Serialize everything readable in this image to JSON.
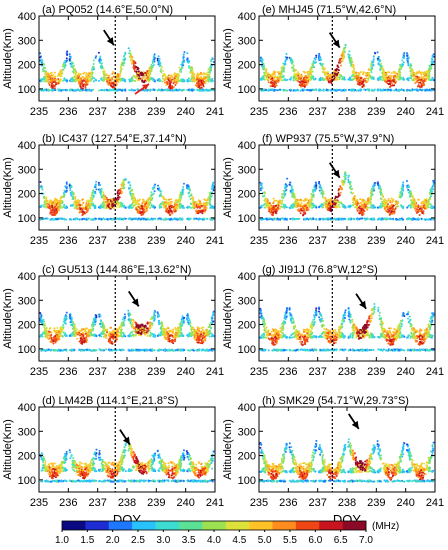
{
  "chart_data": [
    {
      "type": "scatter",
      "title": "(a) PQ052 (14.6°E,50.0°N)",
      "xlabel": "",
      "ylabel": "Altitude(Km)",
      "xlim": [
        235,
        241
      ],
      "ylim": [
        50,
        400
      ],
      "xticks": [
        "235",
        "236",
        "237",
        "238",
        "239",
        "240",
        "241"
      ],
      "yticks": [
        "100",
        "200",
        "300",
        "400"
      ],
      "marker_doy": 237.6,
      "arrows": [
        {
          "x": 237.55,
          "y": 280,
          "color": "#000000"
        },
        {
          "x": 238.75,
          "y": 120,
          "color": "#e2231a"
        }
      ],
      "day_profile": {
        "base_km": 95,
        "bottom_km": 120,
        "top_km": 250,
        "peak_doy": 238.3
      }
    },
    {
      "type": "scatter",
      "title": "(b) IC437 (127.54°E,37.14°N)",
      "xlabel": "",
      "ylabel": "Altitude(Km)",
      "xlim": [
        235,
        241
      ],
      "ylim": [
        50,
        400
      ],
      "xticks": [
        "235",
        "236",
        "237",
        "238",
        "239",
        "240",
        "241"
      ],
      "yticks": [
        "100",
        "200",
        "300",
        "400"
      ],
      "marker_doy": 237.6,
      "arrows": [],
      "day_profile": {
        "base_km": 95,
        "bottom_km": 130,
        "top_km": 250,
        "peak_doy": 237.7
      }
    },
    {
      "type": "scatter",
      "title": "(c) GU513 (144.86°E,13.62°N)",
      "xlabel": "",
      "ylabel": "Altitude(Km)",
      "xlim": [
        235,
        241
      ],
      "ylim": [
        50,
        400
      ],
      "xticks": [
        "235",
        "236",
        "237",
        "238",
        "239",
        "240",
        "241"
      ],
      "yticks": [
        "100",
        "200",
        "300",
        "400"
      ],
      "marker_doy": 237.6,
      "arrows": [
        {
          "x": 238.4,
          "y": 275,
          "color": "#000000"
        }
      ],
      "day_profile": {
        "base_km": 95,
        "bottom_km": 140,
        "top_km": 250,
        "peak_doy": 238.5
      }
    },
    {
      "type": "scatter",
      "title": "(d) LM42B (114.1°E,21.8°S)",
      "xlabel": "DOY",
      "ylabel": "Altitude(Km)",
      "xlim": [
        235,
        241
      ],
      "ylim": [
        50,
        400
      ],
      "xticks": [
        "235",
        "236",
        "237",
        "238",
        "239",
        "240",
        "241"
      ],
      "yticks": [
        "100",
        "200",
        "300",
        "400"
      ],
      "marker_doy": 237.6,
      "arrows": [
        {
          "x": 238.1,
          "y": 245,
          "color": "#000000"
        }
      ],
      "day_profile": {
        "base_km": 95,
        "bottom_km": 125,
        "top_km": 220,
        "peak_doy": 238.2
      }
    },
    {
      "type": "scatter",
      "title": "(e) MHJ45 (71.5°W,42.6°N)",
      "xlabel": "",
      "ylabel": "Altitude(Km)",
      "xlim": [
        235,
        241
      ],
      "ylim": [
        50,
        400
      ],
      "xticks": [
        "235",
        "236",
        "237",
        "238",
        "239",
        "240",
        "241"
      ],
      "yticks": [
        "100",
        "200",
        "300",
        "400"
      ],
      "marker_doy": 237.5,
      "arrows": [
        {
          "x": 237.75,
          "y": 270,
          "color": "#000000"
        }
      ],
      "day_profile": {
        "base_km": 95,
        "bottom_km": 125,
        "top_km": 250,
        "peak_doy": 237.8
      }
    },
    {
      "type": "scatter",
      "title": "(f) WP937 (75.5°W,37.9°N)",
      "xlabel": "",
      "ylabel": "Altitude(Km)",
      "xlim": [
        235,
        241
      ],
      "ylim": [
        50,
        400
      ],
      "xticks": [
        "235",
        "236",
        "237",
        "238",
        "239",
        "240",
        "241"
      ],
      "yticks": [
        "100",
        "200",
        "300",
        "400"
      ],
      "marker_doy": 237.5,
      "arrows": [
        {
          "x": 237.75,
          "y": 265,
          "color": "#000000"
        }
      ],
      "day_profile": {
        "base_km": 95,
        "bottom_km": 130,
        "top_km": 260,
        "peak_doy": 237.8
      }
    },
    {
      "type": "scatter",
      "title": "(g) JI91J (76.8°W,12°S)",
      "xlabel": "",
      "ylabel": "Altitude(Km)",
      "xlim": [
        235,
        241
      ],
      "ylim": [
        50,
        400
      ],
      "xticks": [
        "235",
        "236",
        "237",
        "238",
        "239",
        "240",
        "241"
      ],
      "yticks": [
        "100",
        "200",
        "300",
        "400"
      ],
      "marker_doy": 237.5,
      "arrows": [
        {
          "x": 238.65,
          "y": 265,
          "color": "#000000"
        }
      ],
      "day_profile": {
        "base_km": 95,
        "bottom_km": 135,
        "top_km": 270,
        "peak_doy": 238.7
      }
    },
    {
      "type": "scatter",
      "title": "(h) SMK29 (54.71°W,29.73°S)",
      "xlabel": "DOY",
      "ylabel": "Altitude(Km)",
      "xlim": [
        235,
        241
      ],
      "ylim": [
        50,
        400
      ],
      "xticks": [
        "235",
        "236",
        "237",
        "238",
        "239",
        "240",
        "241"
      ],
      "yticks": [
        "100",
        "200",
        "300",
        "400"
      ],
      "marker_doy": 237.5,
      "arrows": [
        {
          "x": 238.4,
          "y": 310,
          "color": "#000000"
        }
      ],
      "day_profile": {
        "base_km": 95,
        "bottom_km": 120,
        "top_km": 260,
        "peak_doy": 238.4
      }
    }
  ],
  "colorbar": {
    "labels": [
      "1.0",
      "1.5",
      "2.0",
      "2.5",
      "3.0",
      "3.5",
      "4.0",
      "4.5",
      "5.0",
      "5.5",
      "6.0",
      "6.5",
      "7.0"
    ],
    "unit": "(MHz)",
    "range": [
      1.0,
      7.0
    ],
    "colors": [
      "#0a0a82",
      "#1e2dd2",
      "#1e78ff",
      "#28c3ff",
      "#3cdcd2",
      "#5ae196",
      "#9be150",
      "#dce13c",
      "#ffc328",
      "#ff8c1e",
      "#f04614",
      "#c8141e",
      "#8c0a28"
    ]
  }
}
